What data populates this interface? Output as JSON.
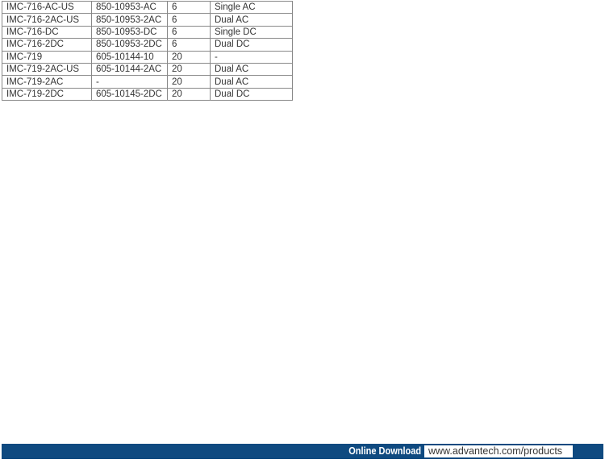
{
  "table": {
    "rows": [
      [
        "IMC-716-AC-US",
        "850-10953-AC",
        "6",
        "Single AC"
      ],
      [
        "IMC-716-2AC-US",
        "850-10953-2AC",
        "6",
        "Dual AC"
      ],
      [
        "IMC-716-DC",
        "850-10953-DC",
        "6",
        "Single DC"
      ],
      [
        "IMC-716-2DC",
        "850-10953-2DC",
        "6",
        "Dual DC"
      ],
      [
        "IMC-719",
        "605-10144-10",
        "20",
        "-"
      ],
      [
        "IMC-719-2AC-US",
        "605-10144-2AC",
        "20",
        "Dual AC"
      ],
      [
        "IMC-719-2AC",
        "-",
        "20",
        "Dual AC"
      ],
      [
        "IMC-719-2DC",
        "605-10145-2DC",
        "20",
        "Dual DC"
      ]
    ]
  },
  "footer": {
    "label": "Online Download",
    "url": "www.advantech.com/products",
    "color": "#0f4a80"
  }
}
